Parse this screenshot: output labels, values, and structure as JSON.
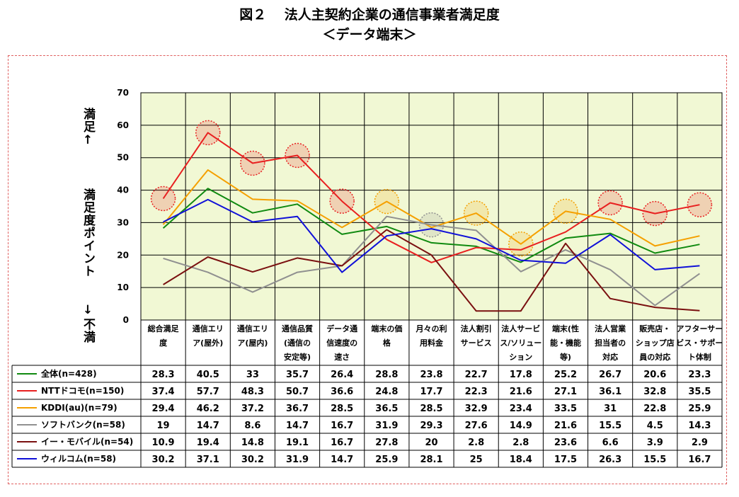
{
  "title": "図２　 法人主契約企業の通信事業者満足度",
  "subtitle": "＜データ端末＞",
  "side_labels": {
    "top": "満足↑",
    "middle": "満足度ポイント",
    "bottom": "↓不満"
  },
  "chart_data": {
    "type": "line",
    "categories": [
      [
        "総合満足",
        "度"
      ],
      [
        "通信エリ",
        "ア(屋外)"
      ],
      [
        "通信エリ",
        "ア(屋内)"
      ],
      [
        "通信品質",
        "(通信の",
        "安定等)"
      ],
      [
        "データ通",
        "信速度の",
        "速さ"
      ],
      [
        "端末の価",
        "格"
      ],
      [
        "月々の利",
        "用料金"
      ],
      [
        "法人割引",
        "サービス"
      ],
      [
        "法人サービ",
        "ス/ソリュー",
        "ション"
      ],
      [
        "端末(性",
        "能・機能",
        "等)"
      ],
      [
        "法人営業",
        "担当者の",
        "対応"
      ],
      [
        "販売店・",
        "ショップ店",
        "員の対応"
      ],
      [
        "アフターサー",
        "ビス・サポー",
        "ト体制"
      ]
    ],
    "ylim": [
      0,
      70
    ],
    "yticks": [
      "0",
      "10",
      "20",
      "30",
      "40",
      "50",
      "60",
      "70"
    ],
    "grid": true,
    "series": [
      {
        "name": "全体(n=428)",
        "color": "#108a10",
        "values": [
          28.3,
          40.5,
          33,
          35.7,
          26.4,
          28.8,
          23.8,
          22.7,
          17.8,
          25.2,
          26.7,
          20.6,
          23.3
        ]
      },
      {
        "name": "NTTドコモ(n=150)",
        "color": "#e82020",
        "values": [
          37.4,
          57.7,
          48.3,
          50.7,
          36.6,
          24.8,
          17.7,
          22.3,
          21.6,
          27.1,
          36.1,
          32.8,
          35.5
        ]
      },
      {
        "name": "KDDI(au)(n=79)",
        "color": "#f5a000",
        "values": [
          29.4,
          46.2,
          37.2,
          36.7,
          28.5,
          36.5,
          28.5,
          32.9,
          23.4,
          33.5,
          31,
          22.8,
          25.9
        ]
      },
      {
        "name": "ソフトバンク(n=58)",
        "color": "#909090",
        "values": [
          19,
          14.7,
          8.6,
          14.7,
          16.7,
          31.9,
          29.3,
          27.6,
          14.9,
          21.6,
          15.5,
          4.5,
          14.3
        ]
      },
      {
        "name": "イー・モバイル(n=54)",
        "color": "#7a1010",
        "values": [
          10.9,
          19.4,
          14.8,
          19.1,
          16.7,
          27.8,
          20,
          2.8,
          2.8,
          23.6,
          6.6,
          3.9,
          2.9
        ]
      },
      {
        "name": "ウィルコム(n=58)",
        "color": "#1010d8",
        "values": [
          30.2,
          37.1,
          30.2,
          31.9,
          14.7,
          25.9,
          28.1,
          25,
          18.4,
          17.5,
          26.3,
          15.5,
          16.7
        ]
      }
    ],
    "table_values": [
      [
        "28.3",
        "40.5",
        "33",
        "35.7",
        "26.4",
        "28.8",
        "23.8",
        "22.7",
        "17.8",
        "25.2",
        "26.7",
        "20.6",
        "23.3"
      ],
      [
        "37.4",
        "57.7",
        "48.3",
        "50.7",
        "36.6",
        "24.8",
        "17.7",
        "22.3",
        "21.6",
        "27.1",
        "36.1",
        "32.8",
        "35.5"
      ],
      [
        "29.4",
        "46.2",
        "37.2",
        "36.7",
        "28.5",
        "36.5",
        "28.5",
        "32.9",
        "23.4",
        "33.5",
        "31",
        "22.8",
        "25.9"
      ],
      [
        "19",
        "14.7",
        "8.6",
        "14.7",
        "16.7",
        "31.9",
        "29.3",
        "27.6",
        "14.9",
        "21.6",
        "15.5",
        "4.5",
        "14.3"
      ],
      [
        "10.9",
        "19.4",
        "14.8",
        "19.1",
        "16.7",
        "27.8",
        "20",
        "2.8",
        "2.8",
        "23.6",
        "6.6",
        "3.9",
        "2.9"
      ],
      [
        "30.2",
        "37.1",
        "30.2",
        "31.9",
        "14.7",
        "25.9",
        "28.1",
        "25",
        "18.4",
        "17.5",
        "26.3",
        "15.5",
        "16.7"
      ]
    ],
    "highlights": [
      {
        "series": 1,
        "index": 0,
        "color": "#e82020"
      },
      {
        "series": 1,
        "index": 1,
        "color": "#e82020"
      },
      {
        "series": 1,
        "index": 2,
        "color": "#e82020"
      },
      {
        "series": 1,
        "index": 3,
        "color": "#e82020"
      },
      {
        "series": 1,
        "index": 4,
        "color": "#e82020"
      },
      {
        "series": 2,
        "index": 5,
        "color": "#f5a000"
      },
      {
        "series": 3,
        "index": 6,
        "color": "#909090"
      },
      {
        "series": 2,
        "index": 7,
        "color": "#f5a000"
      },
      {
        "series": 2,
        "index": 8,
        "color": "#f5a000"
      },
      {
        "series": 2,
        "index": 9,
        "color": "#f5a000"
      },
      {
        "series": 1,
        "index": 10,
        "color": "#e82020"
      },
      {
        "series": 1,
        "index": 11,
        "color": "#e82020"
      },
      {
        "series": 1,
        "index": 12,
        "color": "#e82020"
      }
    ]
  }
}
